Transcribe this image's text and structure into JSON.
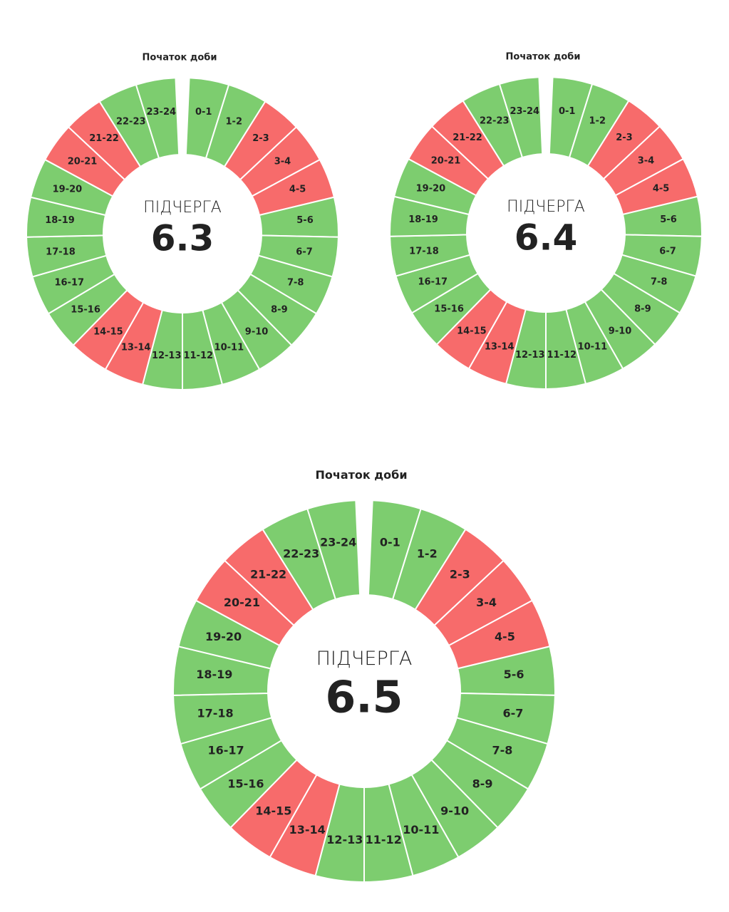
{
  "charts": [
    {
      "start_label": "Початок доби",
      "title": "ПІДЧЕРГА",
      "number": "6.3",
      "segments": [
        {
          "label": "0-1",
          "color": "#7dcd6f"
        },
        {
          "label": "1-2",
          "color": "#7dcd6f"
        },
        {
          "label": "2-3",
          "color": "#f76b6b"
        },
        {
          "label": "3-4",
          "color": "#f76b6b"
        },
        {
          "label": "4-5",
          "color": "#f76b6b"
        },
        {
          "label": "5-6",
          "color": "#7dcd6f"
        },
        {
          "label": "6-7",
          "color": "#7dcd6f"
        },
        {
          "label": "7-8",
          "color": "#7dcd6f"
        },
        {
          "label": "8-9",
          "color": "#7dcd6f"
        },
        {
          "label": "9-10",
          "color": "#7dcd6f"
        },
        {
          "label": "10-11",
          "color": "#7dcd6f"
        },
        {
          "label": "11-12",
          "color": "#7dcd6f"
        },
        {
          "label": "12-13",
          "color": "#7dcd6f"
        },
        {
          "label": "13-14",
          "color": "#f76b6b"
        },
        {
          "label": "14-15",
          "color": "#f76b6b"
        },
        {
          "label": "15-16",
          "color": "#7dcd6f"
        },
        {
          "label": "16-17",
          "color": "#7dcd6f"
        },
        {
          "label": "17-18",
          "color": "#7dcd6f"
        },
        {
          "label": "18-19",
          "color": "#7dcd6f"
        },
        {
          "label": "19-20",
          "color": "#7dcd6f"
        },
        {
          "label": "20-21",
          "color": "#f76b6b"
        },
        {
          "label": "21-22",
          "color": "#f76b6b"
        },
        {
          "label": "22-23",
          "color": "#7dcd6f"
        },
        {
          "label": "23-24",
          "color": "#7dcd6f"
        }
      ]
    },
    {
      "start_label": "Початок доби",
      "title": "ПІДЧЕРГА",
      "number": "6.4",
      "segments": [
        {
          "label": "0-1",
          "color": "#7dcd6f"
        },
        {
          "label": "1-2",
          "color": "#7dcd6f"
        },
        {
          "label": "2-3",
          "color": "#f76b6b"
        },
        {
          "label": "3-4",
          "color": "#f76b6b"
        },
        {
          "label": "4-5",
          "color": "#f76b6b"
        },
        {
          "label": "5-6",
          "color": "#7dcd6f"
        },
        {
          "label": "6-7",
          "color": "#7dcd6f"
        },
        {
          "label": "7-8",
          "color": "#7dcd6f"
        },
        {
          "label": "8-9",
          "color": "#7dcd6f"
        },
        {
          "label": "9-10",
          "color": "#7dcd6f"
        },
        {
          "label": "10-11",
          "color": "#7dcd6f"
        },
        {
          "label": "11-12",
          "color": "#7dcd6f"
        },
        {
          "label": "12-13",
          "color": "#7dcd6f"
        },
        {
          "label": "13-14",
          "color": "#f76b6b"
        },
        {
          "label": "14-15",
          "color": "#f76b6b"
        },
        {
          "label": "15-16",
          "color": "#7dcd6f"
        },
        {
          "label": "16-17",
          "color": "#7dcd6f"
        },
        {
          "label": "17-18",
          "color": "#7dcd6f"
        },
        {
          "label": "18-19",
          "color": "#7dcd6f"
        },
        {
          "label": "19-20",
          "color": "#7dcd6f"
        },
        {
          "label": "20-21",
          "color": "#f76b6b"
        },
        {
          "label": "21-22",
          "color": "#f76b6b"
        },
        {
          "label": "22-23",
          "color": "#7dcd6f"
        },
        {
          "label": "23-24",
          "color": "#7dcd6f"
        }
      ]
    },
    {
      "start_label": "Початок доби",
      "title": "ПІДЧЕРГА",
      "number": "6.5",
      "segments": [
        {
          "label": "0-1",
          "color": "#7dcd6f"
        },
        {
          "label": "1-2",
          "color": "#7dcd6f"
        },
        {
          "label": "2-3",
          "color": "#f76b6b"
        },
        {
          "label": "3-4",
          "color": "#f76b6b"
        },
        {
          "label": "4-5",
          "color": "#f76b6b"
        },
        {
          "label": "5-6",
          "color": "#7dcd6f"
        },
        {
          "label": "6-7",
          "color": "#7dcd6f"
        },
        {
          "label": "7-8",
          "color": "#7dcd6f"
        },
        {
          "label": "8-9",
          "color": "#7dcd6f"
        },
        {
          "label": "9-10",
          "color": "#7dcd6f"
        },
        {
          "label": "10-11",
          "color": "#7dcd6f"
        },
        {
          "label": "11-12",
          "color": "#7dcd6f"
        },
        {
          "label": "12-13",
          "color": "#7dcd6f"
        },
        {
          "label": "13-14",
          "color": "#f76b6b"
        },
        {
          "label": "14-15",
          "color": "#f76b6b"
        },
        {
          "label": "15-16",
          "color": "#7dcd6f"
        },
        {
          "label": "16-17",
          "color": "#7dcd6f"
        },
        {
          "label": "17-18",
          "color": "#7dcd6f"
        },
        {
          "label": "18-19",
          "color": "#7dcd6f"
        },
        {
          "label": "19-20",
          "color": "#7dcd6f"
        },
        {
          "label": "20-21",
          "color": "#f76b6b"
        },
        {
          "label": "21-22",
          "color": "#f76b6b"
        },
        {
          "label": "22-23",
          "color": "#7dcd6f"
        },
        {
          "label": "23-24",
          "color": "#7dcd6f"
        }
      ]
    }
  ]
}
